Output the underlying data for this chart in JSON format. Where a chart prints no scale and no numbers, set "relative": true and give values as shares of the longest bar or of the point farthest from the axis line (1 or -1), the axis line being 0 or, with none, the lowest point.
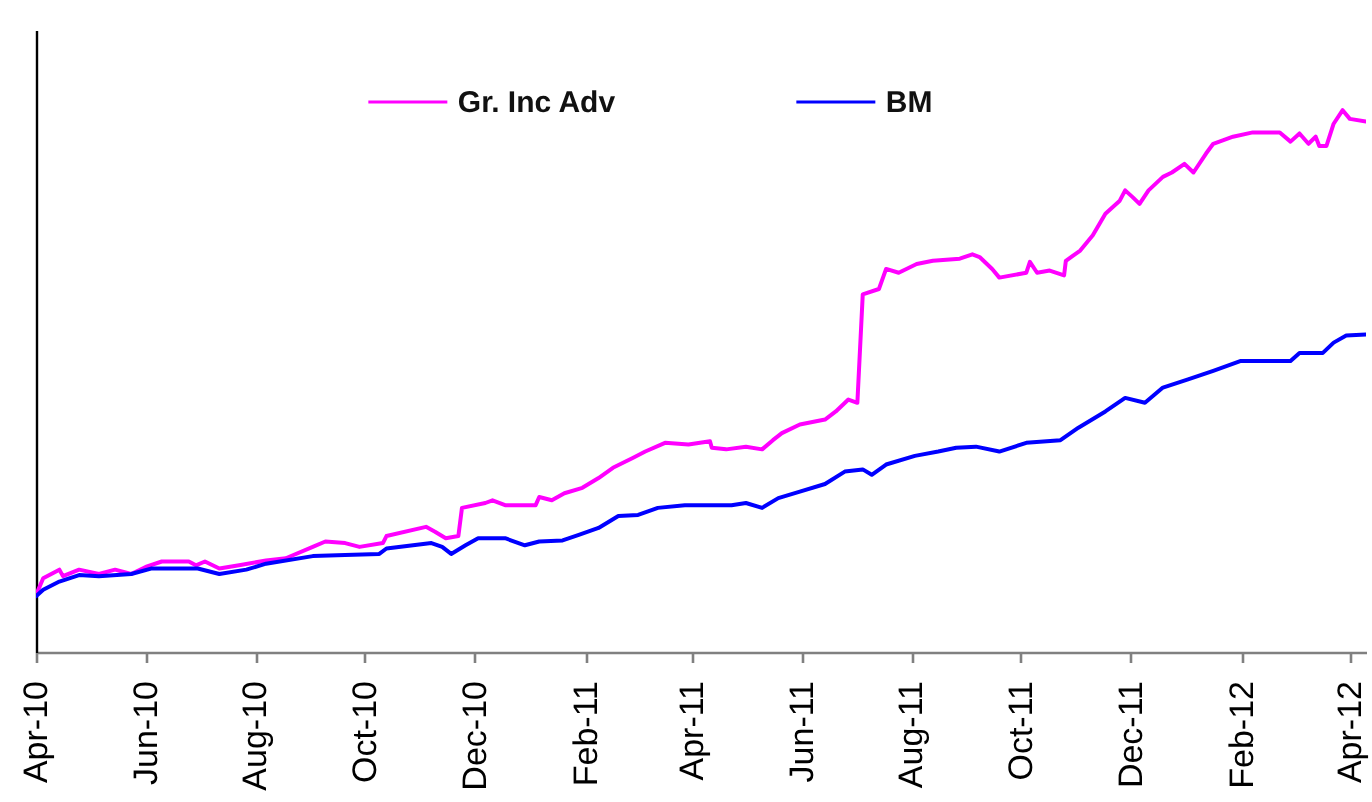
{
  "chart_data": {
    "type": "line",
    "relative": true,
    "legend": "top",
    "xlim": [
      "2010-04-01",
      "2012-04-10"
    ],
    "xticks": [
      {
        "value": "2010-04",
        "label": "Apr-10"
      },
      {
        "value": "2010-06",
        "label": "Jun-10"
      },
      {
        "value": "2010-08",
        "label": "Aug-10"
      },
      {
        "value": "2010-10",
        "label": "Oct-10"
      },
      {
        "value": "2010-12",
        "label": "Dec-10"
      },
      {
        "value": "2011-02",
        "label": "Feb-11"
      },
      {
        "value": "2011-04",
        "label": "Apr-11"
      },
      {
        "value": "2011-06",
        "label": "Jun-11"
      },
      {
        "value": "2011-08",
        "label": "Aug-11"
      },
      {
        "value": "2011-10",
        "label": "Oct-11"
      },
      {
        "value": "2011-12",
        "label": "Dec-11"
      },
      {
        "value": "2012-02",
        "label": "Feb-12"
      },
      {
        "value": "2012-04",
        "label": "Apr-12"
      }
    ],
    "series": [
      {
        "name": "Gr. Inc Adv",
        "color": "#ff00ff",
        "x": [
          "2010-04-01",
          "2010-04-05",
          "2010-04-14",
          "2010-04-16",
          "2010-04-25",
          "2010-05-06",
          "2010-05-15",
          "2010-05-24",
          "2010-06-01",
          "2010-06-10",
          "2010-06-25",
          "2010-06-29",
          "2010-07-04",
          "2010-07-12",
          "2010-07-23",
          "2010-08-07",
          "2010-08-18",
          "2010-09-02",
          "2010-09-09",
          "2010-09-20",
          "2010-09-28",
          "2010-10-11",
          "2010-10-13",
          "2010-11-04",
          "2010-11-09",
          "2010-11-15",
          "2010-11-22",
          "2010-11-24",
          "2010-12-07",
          "2010-12-11",
          "2010-12-18",
          "2011-01-04",
          "2011-01-06",
          "2011-01-13",
          "2011-01-20",
          "2011-01-30",
          "2011-02-08",
          "2011-02-16",
          "2011-02-27",
          "2011-03-06",
          "2011-03-17",
          "2011-03-30",
          "2011-04-11",
          "2011-04-12",
          "2011-04-20",
          "2011-05-01",
          "2011-05-10",
          "2011-05-16",
          "2011-05-21",
          "2011-05-31",
          "2011-06-14",
          "2011-06-20",
          "2011-06-27",
          "2011-07-02",
          "2011-07-05",
          "2011-07-14",
          "2011-07-18",
          "2011-07-25",
          "2011-08-04",
          "2011-08-13",
          "2011-08-28",
          "2011-09-04",
          "2011-09-08",
          "2011-09-15",
          "2011-09-19",
          "2011-10-04",
          "2011-10-06",
          "2011-10-10",
          "2011-10-17",
          "2011-10-25",
          "2011-10-26",
          "2011-11-03",
          "2011-11-10",
          "2011-11-17",
          "2011-11-25",
          "2011-11-28",
          "2011-12-02",
          "2011-12-06",
          "2011-12-11",
          "2011-12-19",
          "2011-12-24",
          "2011-12-31",
          "2012-01-05",
          "2012-01-12",
          "2012-01-16",
          "2012-01-27",
          "2012-02-07",
          "2012-02-22",
          "2012-02-28",
          "2012-03-04",
          "2012-03-09",
          "2012-03-13",
          "2012-03-15",
          "2012-03-19",
          "2012-03-23",
          "2012-03-28",
          "2012-04-01",
          "2012-04-10"
        ],
        "values": [
          0.105,
          0.136,
          0.152,
          0.14,
          0.152,
          0.144,
          0.152,
          0.144,
          0.157,
          0.167,
          0.167,
          0.16,
          0.167,
          0.154,
          0.16,
          0.169,
          0.173,
          0.194,
          0.204,
          0.201,
          0.194,
          0.201,
          0.214,
          0.231,
          0.222,
          0.21,
          0.214,
          0.266,
          0.275,
          0.28,
          0.271,
          0.271,
          0.286,
          0.28,
          0.293,
          0.303,
          0.321,
          0.34,
          0.358,
          0.37,
          0.386,
          0.383,
          0.389,
          0.377,
          0.374,
          0.379,
          0.374,
          0.391,
          0.404,
          0.42,
          0.429,
          0.444,
          0.466,
          0.46,
          0.66,
          0.67,
          0.707,
          0.7,
          0.716,
          0.722,
          0.726,
          0.734,
          0.729,
          0.707,
          0.691,
          0.7,
          0.72,
          0.7,
          0.704,
          0.695,
          0.722,
          0.741,
          0.769,
          0.809,
          0.833,
          0.852,
          0.84,
          0.827,
          0.852,
          0.877,
          0.885,
          0.901,
          0.885,
          0.92,
          0.938,
          0.951,
          0.959,
          0.959,
          0.942,
          0.957,
          0.938,
          0.951,
          0.934,
          0.934,
          0.975,
          1.0,
          0.984,
          0.979
        ]
      },
      {
        "name": "BM",
        "color": "#0000ff",
        "x": [
          "2010-04-01",
          "2010-04-05",
          "2010-04-14",
          "2010-04-25",
          "2010-05-06",
          "2010-05-24",
          "2010-06-04",
          "2010-06-30",
          "2010-07-12",
          "2010-07-27",
          "2010-08-07",
          "2010-09-02",
          "2010-09-20",
          "2010-10-09",
          "2010-10-13",
          "2010-11-07",
          "2010-11-13",
          "2010-11-18",
          "2010-11-26",
          "2010-12-03",
          "2010-12-18",
          "2010-12-29",
          "2011-01-06",
          "2011-01-19",
          "2011-01-28",
          "2011-02-08",
          "2011-02-19",
          "2011-03-02",
          "2011-03-13",
          "2011-03-28",
          "2011-04-23",
          "2011-05-01",
          "2011-05-10",
          "2011-05-19",
          "2011-05-31",
          "2011-06-14",
          "2011-06-25",
          "2011-07-05",
          "2011-07-10",
          "2011-07-18",
          "2011-08-03",
          "2011-08-16",
          "2011-08-26",
          "2011-09-06",
          "2011-09-19",
          "2011-10-04",
          "2011-10-23",
          "2011-11-02",
          "2011-11-17",
          "2011-11-28",
          "2011-12-09",
          "2011-12-19",
          "2012-01-02",
          "2012-01-16",
          "2012-01-31",
          "2012-02-28",
          "2012-03-04",
          "2012-03-17",
          "2012-03-23",
          "2012-03-30",
          "2012-04-10"
        ],
        "values": [
          0.103,
          0.115,
          0.13,
          0.142,
          0.14,
          0.144,
          0.154,
          0.154,
          0.144,
          0.152,
          0.163,
          0.177,
          0.179,
          0.181,
          0.191,
          0.201,
          0.194,
          0.181,
          0.197,
          0.21,
          0.21,
          0.197,
          0.204,
          0.206,
          0.216,
          0.229,
          0.251,
          0.253,
          0.266,
          0.271,
          0.271,
          0.275,
          0.266,
          0.284,
          0.296,
          0.31,
          0.333,
          0.337,
          0.327,
          0.346,
          0.362,
          0.37,
          0.377,
          0.379,
          0.37,
          0.386,
          0.391,
          0.414,
          0.444,
          0.469,
          0.46,
          0.488,
          0.503,
          0.519,
          0.537,
          0.537,
          0.552,
          0.552,
          0.571,
          0.584,
          0.586
        ]
      }
    ]
  }
}
